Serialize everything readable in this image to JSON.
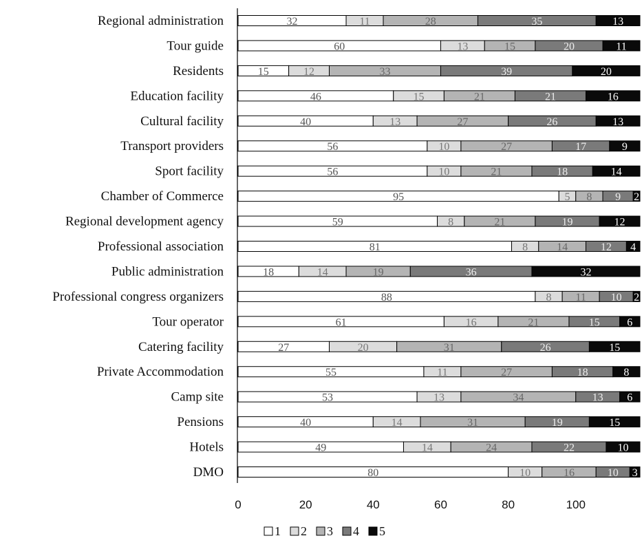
{
  "chart_data": {
    "type": "bar",
    "orientation": "horizontal",
    "stacked": true,
    "categories": [
      "Regional administration",
      "Tour guide",
      "Residents",
      "Education facility",
      "Cultural facility",
      "Transport providers",
      "Sport facility",
      "Chamber of Commerce",
      "Regional development agency",
      "Professional association",
      "Public administration",
      "Professional congress organizers",
      "Tour operator",
      "Catering facility",
      "Private Accommodation",
      "Camp site",
      "Pensions",
      "Hotels",
      "DMO"
    ],
    "series": [
      {
        "name": "1",
        "color": "#ffffff",
        "label_color": "#555555",
        "values": [
          32,
          60,
          15,
          46,
          40,
          56,
          56,
          95,
          59,
          81,
          18,
          88,
          61,
          27,
          55,
          53,
          40,
          49,
          80
        ]
      },
      {
        "name": "2",
        "color": "#dcdcdc",
        "label_color": "#777777",
        "values": [
          11,
          13,
          12,
          15,
          13,
          10,
          10,
          5,
          8,
          8,
          14,
          8,
          16,
          20,
          11,
          13,
          14,
          14,
          10
        ]
      },
      {
        "name": "3",
        "color": "#b4b4b4",
        "label_color": "#666666",
        "values": [
          28,
          15,
          33,
          21,
          27,
          27,
          21,
          8,
          21,
          14,
          19,
          11,
          21,
          31,
          27,
          34,
          31,
          24,
          16
        ]
      },
      {
        "name": "4",
        "color": "#7a7a7a",
        "label_color": "#eeeeee",
        "values": [
          35,
          20,
          39,
          21,
          26,
          17,
          18,
          9,
          19,
          12,
          36,
          10,
          15,
          26,
          18,
          13,
          19,
          22,
          10
        ]
      },
      {
        "name": "5",
        "color": "#0a0a0a",
        "label_color": "#ffffff",
        "values": [
          13,
          11,
          20,
          16,
          13,
          9,
          14,
          2,
          12,
          4,
          32,
          2,
          6,
          15,
          8,
          6,
          15,
          10,
          3
        ]
      }
    ],
    "xlim": [
      0,
      119
    ],
    "xticks": [
      0,
      20,
      40,
      60,
      80,
      100
    ],
    "grid": false,
    "legend": "bottom",
    "title": "",
    "xlabel": "",
    "ylabel": ""
  }
}
